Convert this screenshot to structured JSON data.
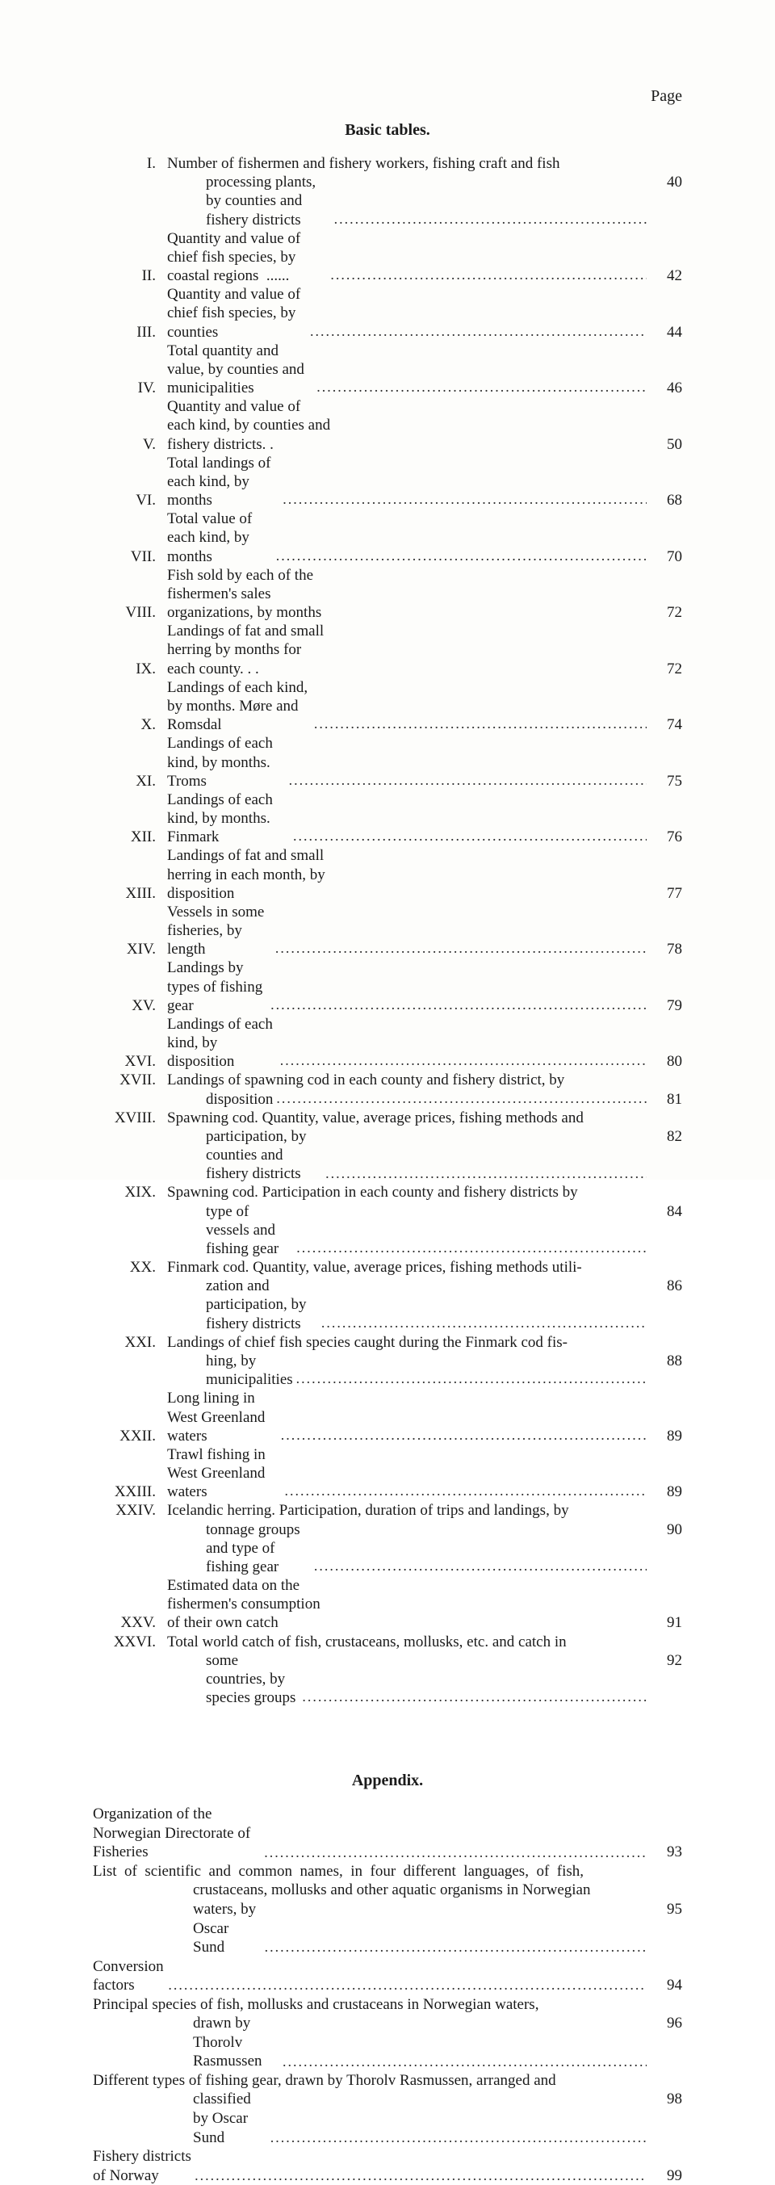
{
  "page_label": "Page",
  "section1_title": "Basic tables.",
  "section2_title": "Appendix.",
  "leader": "..................................................................................................................................................",
  "toc": [
    {
      "num": "I.",
      "lines": [
        "Number of fishermen and fishery workers, fishing craft and fish",
        "processing plants, by counties and fishery districts"
      ],
      "page": "40"
    },
    {
      "num": "II.",
      "lines": [
        "Quantity and value of chief fish species, by coastal regions"
      ],
      "trailing": "  ......",
      "page": "42"
    },
    {
      "num": "III.",
      "lines": [
        "Quantity and value of chief fish species, by counties"
      ],
      "page": "44"
    },
    {
      "num": "IV.",
      "lines": [
        "Total quantity and value, by counties and municipalities"
      ],
      "page": "46"
    },
    {
      "num": "V.",
      "lines": [
        "Quantity and value of each kind, by counties and fishery districts. ."
      ],
      "noleader": true,
      "page": "50"
    },
    {
      "num": "VI.",
      "lines": [
        "Total landings of each kind, by months"
      ],
      "page": "68"
    },
    {
      "num": "VII.",
      "lines": [
        "Total value of each kind, by months"
      ],
      "page": "70"
    },
    {
      "num": "VIII.",
      "lines": [
        "Fish sold by each of the fishermen's sales organizations, by months"
      ],
      "noleader": true,
      "page": "72"
    },
    {
      "num": "IX.",
      "lines": [
        "Landings of fat and small herring by months for each county. . ."
      ],
      "noleader": true,
      "page": "72"
    },
    {
      "num": "X.",
      "lines": [
        "Landings of each kind, by months. Møre and Romsdal"
      ],
      "page": "74"
    },
    {
      "num": "XI.",
      "lines": [
        "Landings of each kind, by months. Troms"
      ],
      "page": "75"
    },
    {
      "num": "XII.",
      "lines": [
        "Landings of each kind, by months. Finmark"
      ],
      "page": "76"
    },
    {
      "num": "XIII.",
      "lines": [
        "Landings of fat and small herring in each month, by disposition"
      ],
      "noleader": true,
      "page": "77"
    },
    {
      "num": "XIV.",
      "lines": [
        "Vessels in some fisheries, by length"
      ],
      "page": "78"
    },
    {
      "num": "XV.",
      "lines": [
        "Landings by types of fishing gear"
      ],
      "page": "79"
    },
    {
      "num": "XVI.",
      "lines": [
        "Landings of each kind, by disposition"
      ],
      "page": "80"
    },
    {
      "num": "XVII.",
      "lines": [
        "Landings of spawning cod in each county and fishery district, by",
        "disposition"
      ],
      "page": "81"
    },
    {
      "num": "XVIII.",
      "lines": [
        "Spawning cod. Quantity, value, average prices, fishing methods and",
        "participation, by counties and fishery districts"
      ],
      "page": "82"
    },
    {
      "num": "XIX.",
      "lines": [
        "Spawning cod. Participation in each county and fishery districts by",
        "type of vessels and fishing gear"
      ],
      "page": "84"
    },
    {
      "num": "XX.",
      "lines": [
        "Finmark cod. Quantity, value, average prices, fishing methods utili-",
        "zation and participation, by fishery districts"
      ],
      "page": "86"
    },
    {
      "num": "XXI.",
      "lines": [
        "Landings of chief fish species caught during the Finmark cod fis-",
        "hing, by municipalities"
      ],
      "page": "88"
    },
    {
      "num": "XXII.",
      "lines": [
        "Long lining in West Greenland waters"
      ],
      "page": "89"
    },
    {
      "num": "XXIII.",
      "lines": [
        "Trawl fishing in West Greenland waters"
      ],
      "page": "89"
    },
    {
      "num": "XXIV.",
      "lines": [
        "Icelandic herring. Participation, duration of trips and landings, by",
        "tonnage groups and type of fishing gear"
      ],
      "page": "90"
    },
    {
      "num": "XXV.",
      "lines": [
        "Estimated data on the fishermen's consumption of their own catch"
      ],
      "noleader": true,
      "page": "91"
    },
    {
      "num": "XXVI.",
      "lines": [
        "Total world catch of fish, crustaceans, mollusks, etc. and catch in",
        "some countries, by species groups"
      ],
      "page": "92"
    }
  ],
  "appendix": [
    {
      "lines": [
        "Organization of the Norwegian Directorate of Fisheries"
      ],
      "page": "93"
    },
    {
      "lines": [
        "List  of  scientific  and  common  names,  in  four  different  languages,  of  fish,",
        "crustaceans, mollusks and other aquatic organisms in Norwegian",
        "waters, by Oscar Sund"
      ],
      "page": "95"
    },
    {
      "lines": [
        "Conversion factors"
      ],
      "page": "94"
    },
    {
      "lines": [
        "Principal species of fish, mollusks and crustaceans in Norwegian waters,",
        "drawn by Thorolv Rasmussen"
      ],
      "page": "96"
    },
    {
      "lines": [
        "Different types of fishing gear, drawn by Thorolv Rasmussen, arranged and",
        "classified by Oscar Sund"
      ],
      "page": "98"
    },
    {
      "lines": [
        "Fishery districts of Norway"
      ],
      "page": "99"
    }
  ]
}
